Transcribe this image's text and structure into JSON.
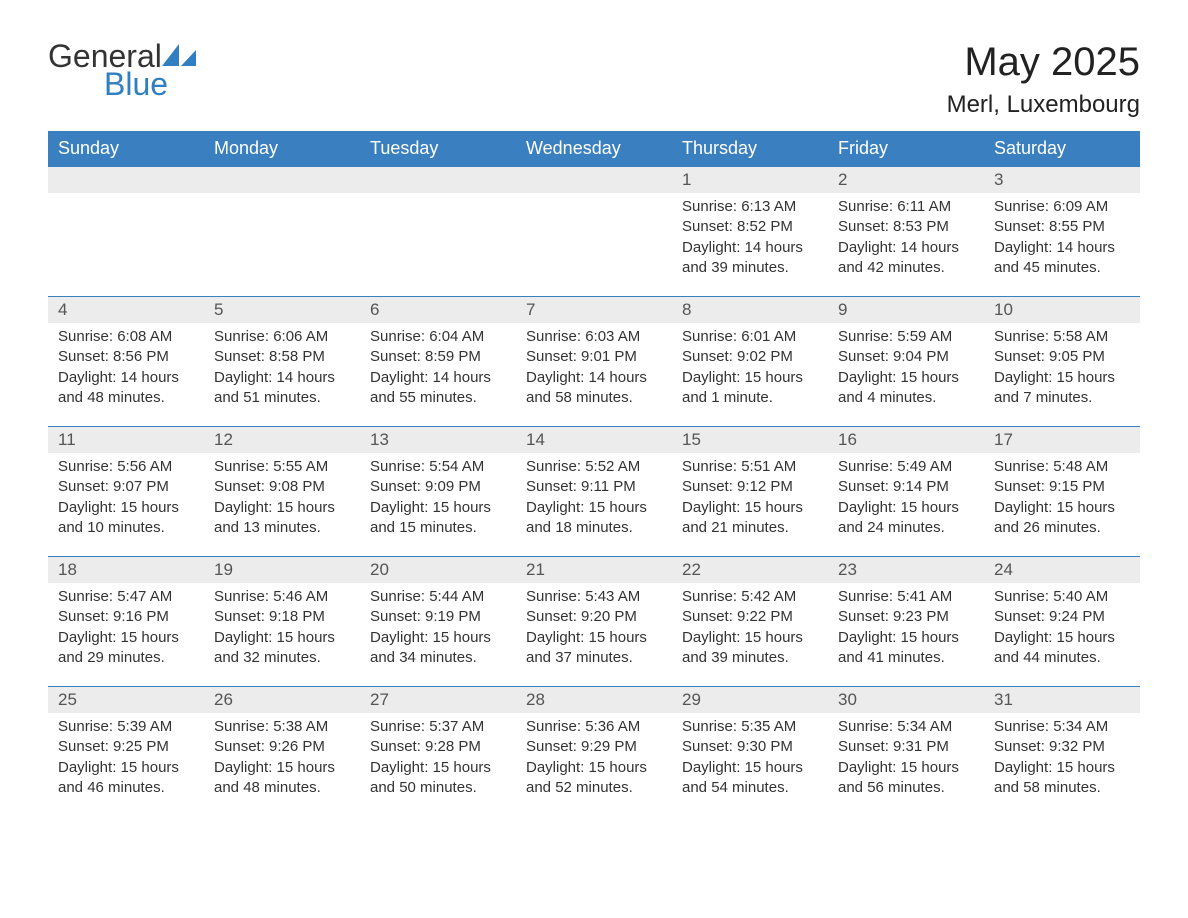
{
  "logo": {
    "general": "General",
    "blue": "Blue"
  },
  "title": "May 2025",
  "location": "Merl, Luxembourg",
  "colors": {
    "header_bg": "#3a7fbf",
    "header_fg": "#ffffff",
    "daynum_bg": "#ececec",
    "row_border": "#3a7fbf",
    "logo_blue": "#2f7fc1",
    "text": "#333333",
    "background": "#ffffff"
  },
  "weekdays": [
    "Sunday",
    "Monday",
    "Tuesday",
    "Wednesday",
    "Thursday",
    "Friday",
    "Saturday"
  ],
  "weeks": [
    [
      {
        "day": "",
        "sunrise": "",
        "sunset": "",
        "daylight": ""
      },
      {
        "day": "",
        "sunrise": "",
        "sunset": "",
        "daylight": ""
      },
      {
        "day": "",
        "sunrise": "",
        "sunset": "",
        "daylight": ""
      },
      {
        "day": "",
        "sunrise": "",
        "sunset": "",
        "daylight": ""
      },
      {
        "day": "1",
        "sunrise": "Sunrise: 6:13 AM",
        "sunset": "Sunset: 8:52 PM",
        "daylight": "Daylight: 14 hours and 39 minutes."
      },
      {
        "day": "2",
        "sunrise": "Sunrise: 6:11 AM",
        "sunset": "Sunset: 8:53 PM",
        "daylight": "Daylight: 14 hours and 42 minutes."
      },
      {
        "day": "3",
        "sunrise": "Sunrise: 6:09 AM",
        "sunset": "Sunset: 8:55 PM",
        "daylight": "Daylight: 14 hours and 45 minutes."
      }
    ],
    [
      {
        "day": "4",
        "sunrise": "Sunrise: 6:08 AM",
        "sunset": "Sunset: 8:56 PM",
        "daylight": "Daylight: 14 hours and 48 minutes."
      },
      {
        "day": "5",
        "sunrise": "Sunrise: 6:06 AM",
        "sunset": "Sunset: 8:58 PM",
        "daylight": "Daylight: 14 hours and 51 minutes."
      },
      {
        "day": "6",
        "sunrise": "Sunrise: 6:04 AM",
        "sunset": "Sunset: 8:59 PM",
        "daylight": "Daylight: 14 hours and 55 minutes."
      },
      {
        "day": "7",
        "sunrise": "Sunrise: 6:03 AM",
        "sunset": "Sunset: 9:01 PM",
        "daylight": "Daylight: 14 hours and 58 minutes."
      },
      {
        "day": "8",
        "sunrise": "Sunrise: 6:01 AM",
        "sunset": "Sunset: 9:02 PM",
        "daylight": "Daylight: 15 hours and 1 minute."
      },
      {
        "day": "9",
        "sunrise": "Sunrise: 5:59 AM",
        "sunset": "Sunset: 9:04 PM",
        "daylight": "Daylight: 15 hours and 4 minutes."
      },
      {
        "day": "10",
        "sunrise": "Sunrise: 5:58 AM",
        "sunset": "Sunset: 9:05 PM",
        "daylight": "Daylight: 15 hours and 7 minutes."
      }
    ],
    [
      {
        "day": "11",
        "sunrise": "Sunrise: 5:56 AM",
        "sunset": "Sunset: 9:07 PM",
        "daylight": "Daylight: 15 hours and 10 minutes."
      },
      {
        "day": "12",
        "sunrise": "Sunrise: 5:55 AM",
        "sunset": "Sunset: 9:08 PM",
        "daylight": "Daylight: 15 hours and 13 minutes."
      },
      {
        "day": "13",
        "sunrise": "Sunrise: 5:54 AM",
        "sunset": "Sunset: 9:09 PM",
        "daylight": "Daylight: 15 hours and 15 minutes."
      },
      {
        "day": "14",
        "sunrise": "Sunrise: 5:52 AM",
        "sunset": "Sunset: 9:11 PM",
        "daylight": "Daylight: 15 hours and 18 minutes."
      },
      {
        "day": "15",
        "sunrise": "Sunrise: 5:51 AM",
        "sunset": "Sunset: 9:12 PM",
        "daylight": "Daylight: 15 hours and 21 minutes."
      },
      {
        "day": "16",
        "sunrise": "Sunrise: 5:49 AM",
        "sunset": "Sunset: 9:14 PM",
        "daylight": "Daylight: 15 hours and 24 minutes."
      },
      {
        "day": "17",
        "sunrise": "Sunrise: 5:48 AM",
        "sunset": "Sunset: 9:15 PM",
        "daylight": "Daylight: 15 hours and 26 minutes."
      }
    ],
    [
      {
        "day": "18",
        "sunrise": "Sunrise: 5:47 AM",
        "sunset": "Sunset: 9:16 PM",
        "daylight": "Daylight: 15 hours and 29 minutes."
      },
      {
        "day": "19",
        "sunrise": "Sunrise: 5:46 AM",
        "sunset": "Sunset: 9:18 PM",
        "daylight": "Daylight: 15 hours and 32 minutes."
      },
      {
        "day": "20",
        "sunrise": "Sunrise: 5:44 AM",
        "sunset": "Sunset: 9:19 PM",
        "daylight": "Daylight: 15 hours and 34 minutes."
      },
      {
        "day": "21",
        "sunrise": "Sunrise: 5:43 AM",
        "sunset": "Sunset: 9:20 PM",
        "daylight": "Daylight: 15 hours and 37 minutes."
      },
      {
        "day": "22",
        "sunrise": "Sunrise: 5:42 AM",
        "sunset": "Sunset: 9:22 PM",
        "daylight": "Daylight: 15 hours and 39 minutes."
      },
      {
        "day": "23",
        "sunrise": "Sunrise: 5:41 AM",
        "sunset": "Sunset: 9:23 PM",
        "daylight": "Daylight: 15 hours and 41 minutes."
      },
      {
        "day": "24",
        "sunrise": "Sunrise: 5:40 AM",
        "sunset": "Sunset: 9:24 PM",
        "daylight": "Daylight: 15 hours and 44 minutes."
      }
    ],
    [
      {
        "day": "25",
        "sunrise": "Sunrise: 5:39 AM",
        "sunset": "Sunset: 9:25 PM",
        "daylight": "Daylight: 15 hours and 46 minutes."
      },
      {
        "day": "26",
        "sunrise": "Sunrise: 5:38 AM",
        "sunset": "Sunset: 9:26 PM",
        "daylight": "Daylight: 15 hours and 48 minutes."
      },
      {
        "day": "27",
        "sunrise": "Sunrise: 5:37 AM",
        "sunset": "Sunset: 9:28 PM",
        "daylight": "Daylight: 15 hours and 50 minutes."
      },
      {
        "day": "28",
        "sunrise": "Sunrise: 5:36 AM",
        "sunset": "Sunset: 9:29 PM",
        "daylight": "Daylight: 15 hours and 52 minutes."
      },
      {
        "day": "29",
        "sunrise": "Sunrise: 5:35 AM",
        "sunset": "Sunset: 9:30 PM",
        "daylight": "Daylight: 15 hours and 54 minutes."
      },
      {
        "day": "30",
        "sunrise": "Sunrise: 5:34 AM",
        "sunset": "Sunset: 9:31 PM",
        "daylight": "Daylight: 15 hours and 56 minutes."
      },
      {
        "day": "31",
        "sunrise": "Sunrise: 5:34 AM",
        "sunset": "Sunset: 9:32 PM",
        "daylight": "Daylight: 15 hours and 58 minutes."
      }
    ]
  ]
}
